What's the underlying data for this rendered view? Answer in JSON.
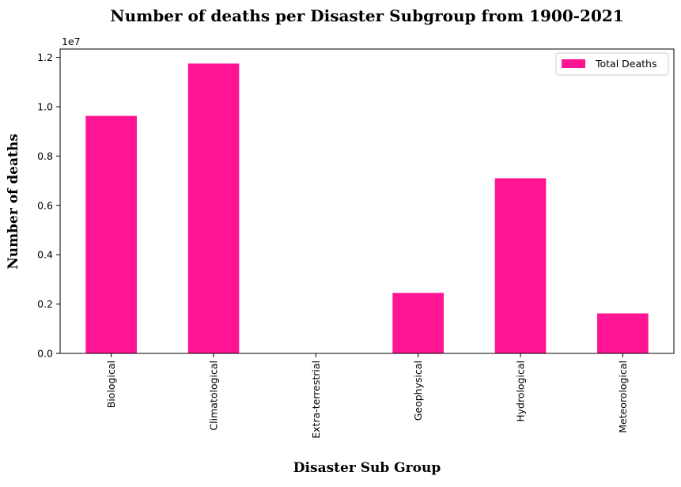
{
  "chart_data": {
    "type": "bar",
    "title": "Number of deaths per Disaster Subgroup from 1900-2021",
    "xlabel": "Disaster Sub Group",
    "ylabel": "Number of deaths",
    "y_offset_label": "1e7",
    "categories": [
      "Biological",
      "Climatological",
      "Extra-terrestrial",
      "Geophysical",
      "Hydrological",
      "Meteorological"
    ],
    "series": [
      {
        "name": "Total Deaths",
        "values": [
          9630000,
          11750000,
          0,
          2450000,
          7100000,
          1620000
        ]
      }
    ],
    "y_ticks": [
      "0.0",
      "0.2",
      "0.4",
      "0.6",
      "0.8",
      "1.0",
      "1.2"
    ],
    "ylim": [
      0,
      12340000
    ],
    "grid": false,
    "legend_position": "top-right",
    "bar_color": "#ff1493"
  }
}
